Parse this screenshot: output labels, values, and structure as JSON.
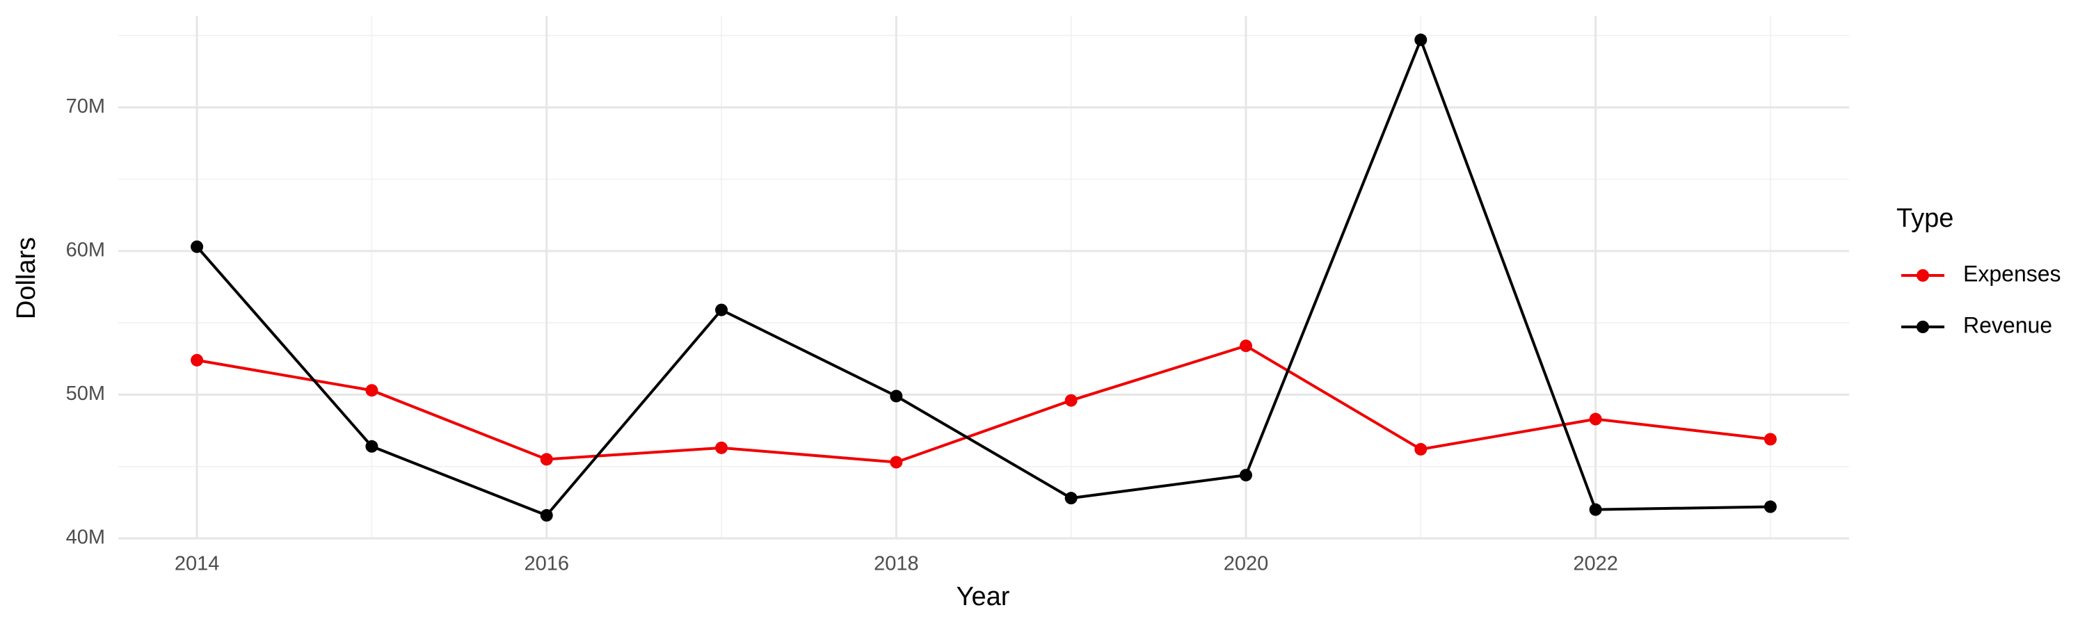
{
  "chart_data": {
    "type": "line",
    "x_label": "Year",
    "y_label": "Dollars",
    "legend_title": "Type",
    "legend": "right",
    "grid": true,
    "x": [
      2014,
      2015,
      2016,
      2017,
      2018,
      2019,
      2020,
      2021,
      2022,
      2023
    ],
    "series": [
      {
        "name": "Expenses",
        "color": "#f00000",
        "values": [
          52400000,
          50300000,
          45500000,
          46300000,
          45300000,
          49600000,
          53400000,
          46200000,
          48300000,
          46900000
        ]
      },
      {
        "name": "Revenue",
        "color": "#000000",
        "values": [
          60300000,
          46400000,
          41600000,
          55900000,
          49900000,
          42800000,
          44400000,
          74700000,
          42000000,
          42200000
        ]
      }
    ],
    "xlim": [
      2013.55,
      2023.45
    ],
    "xticks": [
      2014,
      2016,
      2018,
      2020,
      2022
    ],
    "x_minor_ticks": [
      2015,
      2017,
      2019,
      2021,
      2023
    ],
    "ylim": [
      39950000,
      76360000
    ],
    "yticks": [
      {
        "value": 40000000,
        "label": "40M"
      },
      {
        "value": 50000000,
        "label": "50M"
      },
      {
        "value": 60000000,
        "label": "60M"
      },
      {
        "value": 70000000,
        "label": "70M"
      }
    ],
    "y_minor_ticks": [
      45000000,
      55000000,
      65000000,
      75000000
    ]
  }
}
